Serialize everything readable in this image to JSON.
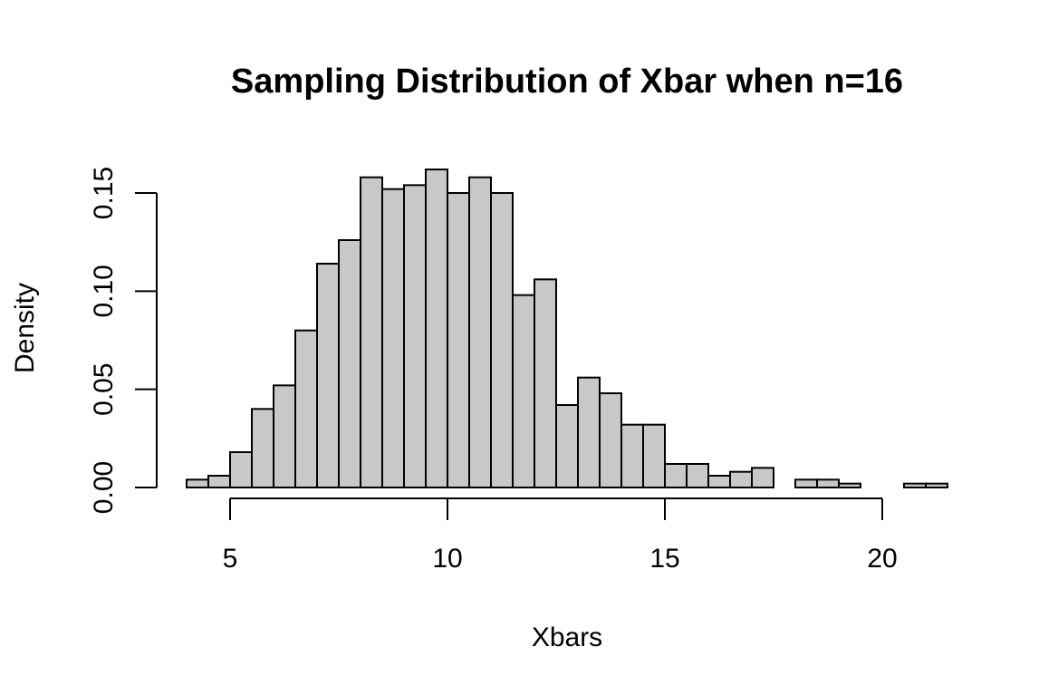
{
  "chart_data": {
    "type": "bar",
    "subtype": "histogram",
    "title": "Sampling Distribution of Xbar when n=16",
    "xlabel": "Xbars",
    "ylabel": "Density",
    "xlim": [
      4,
      21.5
    ],
    "ylim": [
      0,
      0.162
    ],
    "bin_width": 0.5,
    "bins": [
      {
        "x0": 4.0,
        "x1": 4.5,
        "density": 0.004
      },
      {
        "x0": 4.5,
        "x1": 5.0,
        "density": 0.006
      },
      {
        "x0": 5.0,
        "x1": 5.5,
        "density": 0.018
      },
      {
        "x0": 5.5,
        "x1": 6.0,
        "density": 0.04
      },
      {
        "x0": 6.0,
        "x1": 6.5,
        "density": 0.052
      },
      {
        "x0": 6.5,
        "x1": 7.0,
        "density": 0.08
      },
      {
        "x0": 7.0,
        "x1": 7.5,
        "density": 0.114
      },
      {
        "x0": 7.5,
        "x1": 8.0,
        "density": 0.126
      },
      {
        "x0": 8.0,
        "x1": 8.5,
        "density": 0.158
      },
      {
        "x0": 8.5,
        "x1": 9.0,
        "density": 0.152
      },
      {
        "x0": 9.0,
        "x1": 9.5,
        "density": 0.154
      },
      {
        "x0": 9.5,
        "x1": 10.0,
        "density": 0.162
      },
      {
        "x0": 10.0,
        "x1": 10.5,
        "density": 0.15
      },
      {
        "x0": 10.5,
        "x1": 11.0,
        "density": 0.158
      },
      {
        "x0": 11.0,
        "x1": 11.5,
        "density": 0.15
      },
      {
        "x0": 11.5,
        "x1": 12.0,
        "density": 0.098
      },
      {
        "x0": 12.0,
        "x1": 12.5,
        "density": 0.106
      },
      {
        "x0": 12.5,
        "x1": 13.0,
        "density": 0.042
      },
      {
        "x0": 13.0,
        "x1": 13.5,
        "density": 0.056
      },
      {
        "x0": 13.5,
        "x1": 14.0,
        "density": 0.048
      },
      {
        "x0": 14.0,
        "x1": 14.5,
        "density": 0.032
      },
      {
        "x0": 14.5,
        "x1": 15.0,
        "density": 0.032
      },
      {
        "x0": 15.0,
        "x1": 15.5,
        "density": 0.012
      },
      {
        "x0": 15.5,
        "x1": 16.0,
        "density": 0.012
      },
      {
        "x0": 16.0,
        "x1": 16.5,
        "density": 0.006
      },
      {
        "x0": 16.5,
        "x1": 17.0,
        "density": 0.008
      },
      {
        "x0": 17.0,
        "x1": 17.5,
        "density": 0.01
      },
      {
        "x0": 17.5,
        "x1": 18.0,
        "density": 0.0
      },
      {
        "x0": 18.0,
        "x1": 18.5,
        "density": 0.004
      },
      {
        "x0": 18.5,
        "x1": 19.0,
        "density": 0.004
      },
      {
        "x0": 19.0,
        "x1": 19.5,
        "density": 0.002
      },
      {
        "x0": 19.5,
        "x1": 20.0,
        "density": 0.0
      },
      {
        "x0": 20.0,
        "x1": 20.5,
        "density": 0.0
      },
      {
        "x0": 20.5,
        "x1": 21.0,
        "density": 0.002
      },
      {
        "x0": 21.0,
        "x1": 21.5,
        "density": 0.002
      }
    ],
    "x_ticks": [
      5,
      10,
      15,
      20
    ],
    "x_tick_labels": [
      "5",
      "10",
      "15",
      "20"
    ],
    "y_ticks": [
      0,
      0.05,
      0.1,
      0.15
    ],
    "y_tick_labels": [
      "0.00",
      "0.05",
      "0.10",
      "0.15"
    ],
    "grid": false,
    "colors": {
      "bar_fill": "#c8c8c8",
      "bar_stroke": "#000000",
      "background": "#ffffff"
    }
  }
}
